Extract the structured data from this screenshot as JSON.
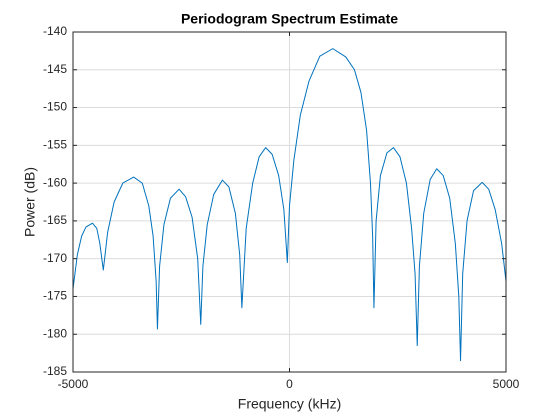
{
  "chart_data": {
    "type": "line",
    "title": "Periodogram Spectrum Estimate",
    "x_label": "Frequency (kHz)",
    "y_label": "Power (dB)",
    "xlim": [
      -5000,
      5000
    ],
    "xticks": [
      -5000,
      0,
      5000
    ],
    "ylim": [
      -185,
      -140
    ],
    "yticks": [
      -185,
      -180,
      -175,
      -170,
      -165,
      -160,
      -155,
      -150,
      -145,
      -140
    ],
    "grid": true,
    "x": [
      -5000,
      -4900,
      -4800,
      -4700,
      -4550,
      -4450,
      -4380,
      -4300,
      -4200,
      -4050,
      -3850,
      -3600,
      -3400,
      -3250,
      -3150,
      -3080,
      -3050,
      -3000,
      -2900,
      -2750,
      -2550,
      -2400,
      -2250,
      -2120,
      -2050,
      -2000,
      -1900,
      -1750,
      -1550,
      -1400,
      -1250,
      -1150,
      -1100,
      -1000,
      -850,
      -700,
      -550,
      -400,
      -250,
      -130,
      -50,
      0,
      100,
      250,
      450,
      700,
      1000,
      1300,
      1500,
      1650,
      1780,
      1870,
      1920,
      1950,
      2000,
      2100,
      2250,
      2400,
      2550,
      2700,
      2820,
      2900,
      2950,
      3000,
      3100,
      3250,
      3400,
      3550,
      3700,
      3830,
      3910,
      3950,
      4000,
      4100,
      4250,
      4450,
      4600,
      4750,
      4900,
      5000
    ],
    "series": [
      {
        "color": "#0072bd",
        "values": [
          -174,
          -169.5,
          -167,
          -165.8,
          -165.3,
          -166,
          -168,
          -171.5,
          -166.5,
          -162.5,
          -160,
          -159.2,
          -160,
          -163,
          -167,
          -173,
          -179.3,
          -171,
          -165.5,
          -162,
          -160.8,
          -161.8,
          -164.5,
          -170,
          -178.7,
          -171,
          -165.5,
          -161.5,
          -159.6,
          -160.5,
          -164,
          -169.5,
          -176.5,
          -166,
          -160,
          -156.5,
          -155.3,
          -156.2,
          -159,
          -163.5,
          -170.5,
          -163,
          -157,
          -151,
          -146.5,
          -143.2,
          -142.2,
          -143.3,
          -145,
          -148,
          -153,
          -160,
          -167,
          -176.5,
          -165,
          -159,
          -156,
          -155.3,
          -156.5,
          -160,
          -166,
          -172,
          -181.5,
          -171,
          -164,
          -159.5,
          -158.1,
          -159,
          -162,
          -168,
          -175,
          -183.5,
          -172,
          -165,
          -161,
          -159.9,
          -160.8,
          -163.5,
          -168,
          -173
        ]
      }
    ]
  }
}
